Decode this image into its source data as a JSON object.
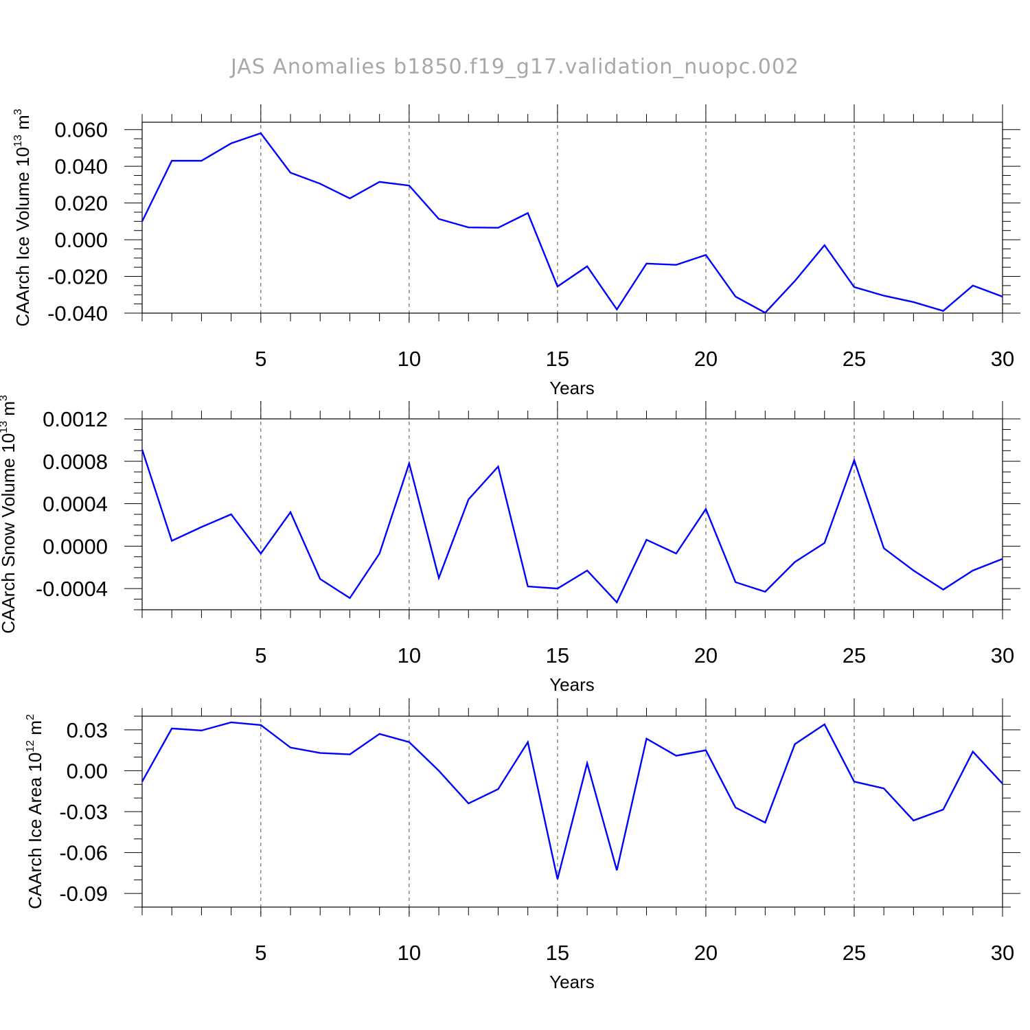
{
  "figure_title": "JAS Anomalies b1850.f19_g17.validation_nuopc.002",
  "chart_data": [
    {
      "type": "line",
      "ylabel": "CAArch Ice Volume",
      "ylabel_unit_base": "10",
      "ylabel_unit_exp": "13",
      "ylabel_unit_m": "m",
      "ylabel_unit_mexp": "3",
      "xlabel": "Years",
      "xlim": [
        1,
        30
      ],
      "ylim": [
        -0.04,
        0.064
      ],
      "x_ticks": [
        5,
        10,
        15,
        20,
        25,
        30
      ],
      "x_tick_labels": [
        "5",
        "10",
        "15",
        "20",
        "25",
        "30"
      ],
      "y_ticks": [
        0.06,
        0.04,
        0.02,
        0.0,
        -0.02,
        -0.04
      ],
      "y_tick_labels": [
        "0.060",
        "0.040",
        "0.020",
        "0.000",
        "-0.020",
        "-0.040"
      ],
      "y_minor_step": 0.005,
      "grid_x": [
        5,
        10,
        15,
        20,
        25
      ],
      "line_color": "#0000ff",
      "x": [
        1,
        2,
        3,
        4,
        5,
        6,
        7,
        8,
        9,
        10,
        11,
        12,
        13,
        14,
        15,
        16,
        17,
        18,
        19,
        20,
        21,
        22,
        23,
        24,
        25,
        26,
        27,
        28,
        29,
        30
      ],
      "values": [
        0.01,
        0.043,
        0.043,
        0.0525,
        0.058,
        0.0365,
        0.0305,
        0.0225,
        0.0315,
        0.0295,
        0.0113,
        0.0067,
        0.0065,
        0.0145,
        -0.0255,
        -0.0145,
        -0.038,
        -0.013,
        -0.0137,
        -0.0083,
        -0.031,
        -0.0398,
        -0.0225,
        -0.003,
        -0.0258,
        -0.0305,
        -0.034,
        -0.0388,
        -0.025,
        -0.031
      ]
    },
    {
      "type": "line",
      "ylabel": "CAArch Snow Volume",
      "ylabel_unit_base": "10",
      "ylabel_unit_exp": "13",
      "ylabel_unit_m": "m",
      "ylabel_unit_mexp": "3",
      "xlabel": "Years",
      "xlim": [
        1,
        30
      ],
      "ylim": [
        -0.0006,
        0.0012
      ],
      "x_ticks": [
        5,
        10,
        15,
        20,
        25,
        30
      ],
      "x_tick_labels": [
        "5",
        "10",
        "15",
        "20",
        "25",
        "30"
      ],
      "y_ticks": [
        0.0012,
        0.0008,
        0.0004,
        0.0,
        -0.0004
      ],
      "y_tick_labels": [
        "0.0012",
        "0.0008",
        "0.0004",
        "0.0000",
        "-0.0004"
      ],
      "y_minor_step": 0.0001,
      "grid_x": [
        5,
        10,
        15,
        20,
        25
      ],
      "line_color": "#0000ff",
      "x": [
        1,
        2,
        3,
        4,
        5,
        6,
        7,
        8,
        9,
        10,
        11,
        12,
        13,
        14,
        15,
        16,
        17,
        18,
        19,
        20,
        21,
        22,
        23,
        24,
        25,
        26,
        27,
        28,
        29,
        30
      ],
      "values": [
        0.00091,
        5e-05,
        0.00018,
        0.0003,
        -7e-05,
        0.00032,
        -0.00031,
        -0.00049,
        -7e-05,
        0.00078,
        -0.0003,
        0.00044,
        0.00075,
        -0.00038,
        -0.0004,
        -0.00023,
        -0.00053,
        6e-05,
        -7e-05,
        0.00035,
        -0.00034,
        -0.00043,
        -0.00015,
        3e-05,
        0.00081,
        -2e-05,
        -0.00023,
        -0.00041,
        -0.00023,
        -0.00012
      ]
    },
    {
      "type": "line",
      "ylabel": "CAArch Ice Area",
      "ylabel_unit_base": "10",
      "ylabel_unit_exp": "12",
      "ylabel_unit_m": "m",
      "ylabel_unit_mexp": "2",
      "xlabel": "Years",
      "xlim": [
        1,
        30
      ],
      "ylim": [
        -0.1,
        0.04
      ],
      "x_ticks": [
        5,
        10,
        15,
        20,
        25,
        30
      ],
      "x_tick_labels": [
        "5",
        "10",
        "15",
        "20",
        "25",
        "30"
      ],
      "y_ticks": [
        0.03,
        0.0,
        -0.03,
        -0.06,
        -0.09
      ],
      "y_tick_labels": [
        "0.03",
        "0.00",
        "-0.03",
        "-0.06",
        "-0.09"
      ],
      "y_minor_step": 0.01,
      "grid_x": [
        5,
        10,
        15,
        20,
        25
      ],
      "line_color": "#0000ff",
      "x": [
        1,
        2,
        3,
        4,
        5,
        6,
        7,
        8,
        9,
        10,
        11,
        12,
        13,
        14,
        15,
        16,
        17,
        18,
        19,
        20,
        21,
        22,
        23,
        24,
        25,
        26,
        27,
        28,
        29,
        30
      ],
      "values": [
        -0.008,
        0.031,
        0.0295,
        0.0355,
        0.0335,
        0.017,
        0.013,
        0.012,
        0.027,
        0.021,
        0.0,
        -0.024,
        -0.0135,
        0.021,
        -0.0795,
        0.0055,
        -0.073,
        0.0235,
        0.011,
        0.015,
        -0.027,
        -0.038,
        0.0195,
        0.034,
        -0.008,
        -0.013,
        -0.0365,
        -0.0285,
        0.014,
        -0.0095
      ]
    }
  ]
}
